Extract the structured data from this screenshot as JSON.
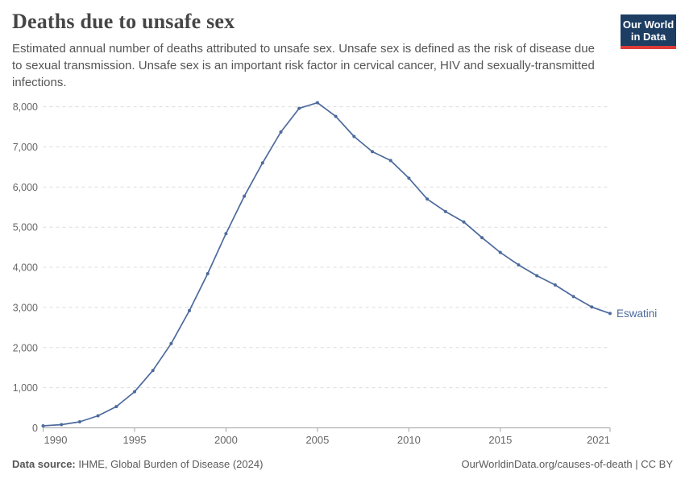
{
  "header": {
    "title": "Deaths due to unsafe sex",
    "subtitle": "Estimated annual number of deaths attributed to unsafe sex. Unsafe sex is defined as the risk of disease due to sexual transmission. Unsafe sex is an important risk factor in cervical cancer, HIV and sexually-transmitted infections.",
    "logo": {
      "line1": "Our World",
      "line2": "in Data"
    },
    "logo_colors": {
      "background": "#1d3d63",
      "underline": "#dc3b37"
    }
  },
  "chart_data": {
    "type": "line",
    "title": "Deaths due to unsafe sex",
    "xlabel": "",
    "ylabel": "",
    "xlim": [
      1990,
      2021
    ],
    "ylim": [
      0,
      8000
    ],
    "x_ticks": [
      1990,
      1995,
      2000,
      2005,
      2010,
      2015,
      2021
    ],
    "y_ticks": [
      0,
      1000,
      2000,
      3000,
      4000,
      5000,
      6000,
      7000,
      8000
    ],
    "grid": "horizontal-dashed",
    "legend_position": "end-of-line-label",
    "colors": {
      "line": "#4c6a9c",
      "grid": "#dcdcdc",
      "axis": "#a3a3a3",
      "tick_label": "#666666"
    },
    "series": [
      {
        "name": "Eswatini",
        "color": "#4c6a9c",
        "x": [
          1990,
          1991,
          1992,
          1993,
          1994,
          1995,
          1996,
          1997,
          1998,
          1999,
          2000,
          2001,
          2002,
          2003,
          2004,
          2005,
          2006,
          2007,
          2008,
          2009,
          2010,
          2011,
          2012,
          2013,
          2014,
          2015,
          2016,
          2017,
          2018,
          2019,
          2020,
          2021
        ],
        "values": [
          50,
          80,
          150,
          300,
          530,
          900,
          1430,
          2100,
          2920,
          3840,
          4840,
          5770,
          6600,
          7370,
          7960,
          8100,
          7760,
          7260,
          6880,
          6660,
          6220,
          5700,
          5390,
          5130,
          4740,
          4370,
          4060,
          3790,
          3560,
          3270,
          3010,
          2850
        ]
      }
    ]
  },
  "footer": {
    "source_label": "Data source:",
    "source_text": "IHME, Global Burden of Disease (2024)",
    "link_text": "OurWorldinData.org/causes-of-death | CC BY"
  }
}
